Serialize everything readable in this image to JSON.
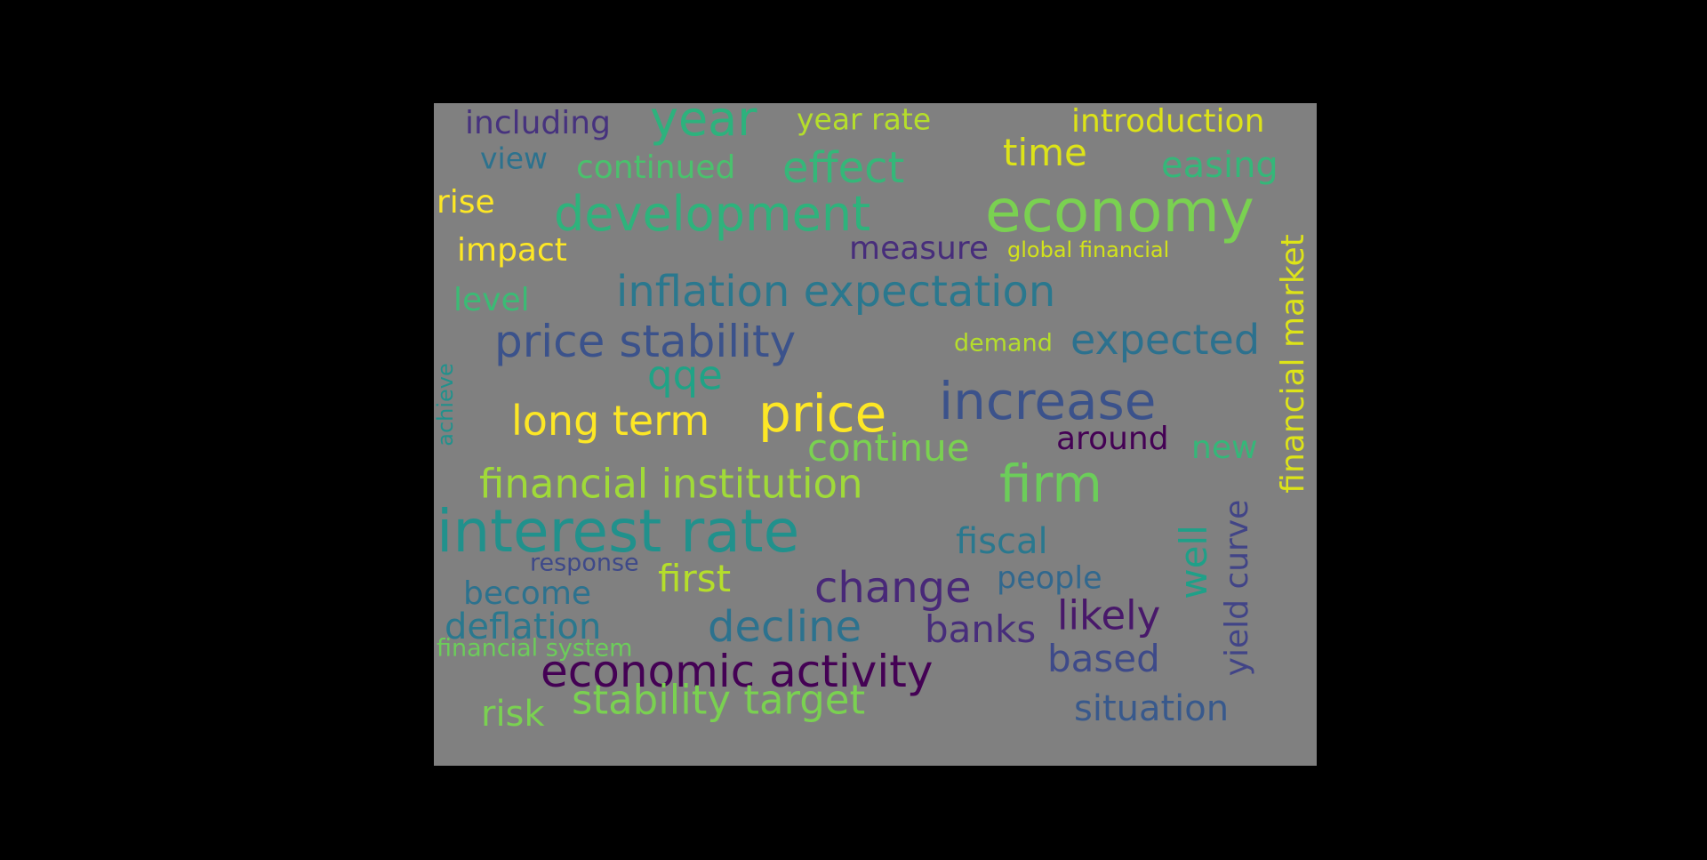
{
  "background_color": "#000000",
  "canvas_color": "#808080",
  "words": [
    {
      "text": "including",
      "color": "#46327e"
    },
    {
      "text": "year",
      "color": "#2db27d"
    },
    {
      "text": "year rate",
      "color": "#b5de2b"
    },
    {
      "text": "introduction",
      "color": "#dde318"
    },
    {
      "text": "view",
      "color": "#2c728e"
    },
    {
      "text": "continued",
      "color": "#4ac16d"
    },
    {
      "text": "effect",
      "color": "#35b779"
    },
    {
      "text": "time",
      "color": "#dde318"
    },
    {
      "text": "easing",
      "color": "#35b779"
    },
    {
      "text": "rise",
      "color": "#fde725"
    },
    {
      "text": "development",
      "color": "#2eb37c"
    },
    {
      "text": "economy",
      "color": "#7ad151"
    },
    {
      "text": "impact",
      "color": "#fde725"
    },
    {
      "text": "measure",
      "color": "#472d7b"
    },
    {
      "text": "global financial",
      "color": "#d2e21b"
    },
    {
      "text": "level",
      "color": "#3bbb75"
    },
    {
      "text": "inflation expectation",
      "color": "#2a788e"
    },
    {
      "text": "financial market",
      "color": "#dde318"
    },
    {
      "text": "price stability",
      "color": "#3b528b"
    },
    {
      "text": "demand",
      "color": "#b5de2b"
    },
    {
      "text": "expected",
      "color": "#2c718e"
    },
    {
      "text": "qqe",
      "color": "#20a386"
    },
    {
      "text": "achieve",
      "color": "#21918c"
    },
    {
      "text": "long term",
      "color": "#fde725"
    },
    {
      "text": "price",
      "color": "#fde725"
    },
    {
      "text": "increase",
      "color": "#3b528b"
    },
    {
      "text": "continue",
      "color": "#7ad151"
    },
    {
      "text": "around",
      "color": "#440154"
    },
    {
      "text": "new",
      "color": "#35b779"
    },
    {
      "text": "financial institution",
      "color": "#a0da39"
    },
    {
      "text": "firm",
      "color": "#6ccd5a"
    },
    {
      "text": "interest rate",
      "color": "#21918c"
    },
    {
      "text": "fiscal",
      "color": "#2a788e"
    },
    {
      "text": "well",
      "color": "#1fa088"
    },
    {
      "text": "yield curve",
      "color": "#414487"
    },
    {
      "text": "response",
      "color": "#3e4989"
    },
    {
      "text": "first",
      "color": "#b5de2b"
    },
    {
      "text": "change",
      "color": "#482878"
    },
    {
      "text": "people",
      "color": "#31688e"
    },
    {
      "text": "become",
      "color": "#2c728e"
    },
    {
      "text": "deflation",
      "color": "#2a788e"
    },
    {
      "text": "decline",
      "color": "#2c728e"
    },
    {
      "text": "banks",
      "color": "#472d7b"
    },
    {
      "text": "likely",
      "color": "#48186a"
    },
    {
      "text": "financial system",
      "color": "#6ccd5a"
    },
    {
      "text": "based",
      "color": "#3e4a89"
    },
    {
      "text": "economic activity",
      "color": "#440154"
    },
    {
      "text": "risk",
      "color": "#7ad151"
    },
    {
      "text": "stability target",
      "color": "#7ad151"
    },
    {
      "text": "situation",
      "color": "#38598c"
    }
  ]
}
